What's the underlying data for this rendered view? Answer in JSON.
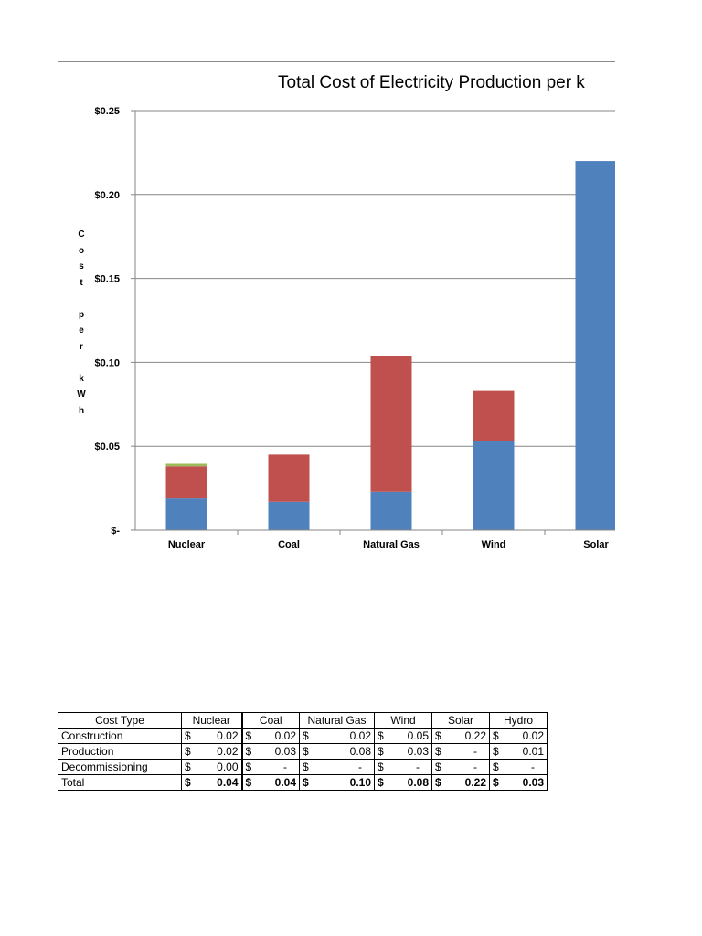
{
  "chart_data": {
    "type": "bar",
    "stacked": true,
    "title": "Total Cost of Electricity Production per k",
    "ylabel": "Cost per kWh",
    "ylabel_chars": [
      "C",
      "o",
      "s",
      "t",
      "",
      "p",
      "e",
      "r",
      "",
      "k",
      "W",
      "h"
    ],
    "ylim": [
      0,
      0.25
    ],
    "yticks": [
      {
        "value": 0.25,
        "label": "$0.25"
      },
      {
        "value": 0.2,
        "label": "$0.20"
      },
      {
        "value": 0.15,
        "label": "$0.15"
      },
      {
        "value": 0.1,
        "label": "$0.10"
      },
      {
        "value": 0.05,
        "label": "$0.05"
      },
      {
        "value": 0.0,
        "label": "$-"
      }
    ],
    "categories": [
      "Nuclear",
      "Coal",
      "Natural Gas",
      "Wind",
      "Solar"
    ],
    "series": [
      {
        "color": "#4f81bd",
        "values": [
          0.019,
          0.017,
          0.023,
          0.053,
          0.22
        ]
      },
      {
        "color": "#c0504d",
        "values": [
          0.019,
          0.028,
          0.081,
          0.03,
          0
        ]
      },
      {
        "color": "#9bbb59",
        "values": [
          0.0015,
          0,
          0,
          0,
          0
        ]
      }
    ],
    "grid": true
  },
  "table": {
    "headers": [
      "Cost Type",
      "Nuclear",
      "Coal",
      "Natural Gas",
      "Wind",
      "Solar",
      "Hydro"
    ],
    "rows": [
      {
        "label": "Construction",
        "values": [
          "0.02",
          "0.02",
          "0.02",
          "0.05",
          "0.22",
          "0.02"
        ]
      },
      {
        "label": "Production",
        "values": [
          "0.02",
          "0.03",
          "0.08",
          "0.03",
          "-",
          "0.01"
        ]
      },
      {
        "label": "Decommissioning",
        "values": [
          "0.00",
          "-",
          "-",
          "-",
          "-",
          "-"
        ]
      },
      {
        "label": "Total",
        "values": [
          "0.04",
          "0.04",
          "0.10",
          "0.08",
          "0.22",
          "0.03"
        ]
      }
    ],
    "currency": "$"
  }
}
